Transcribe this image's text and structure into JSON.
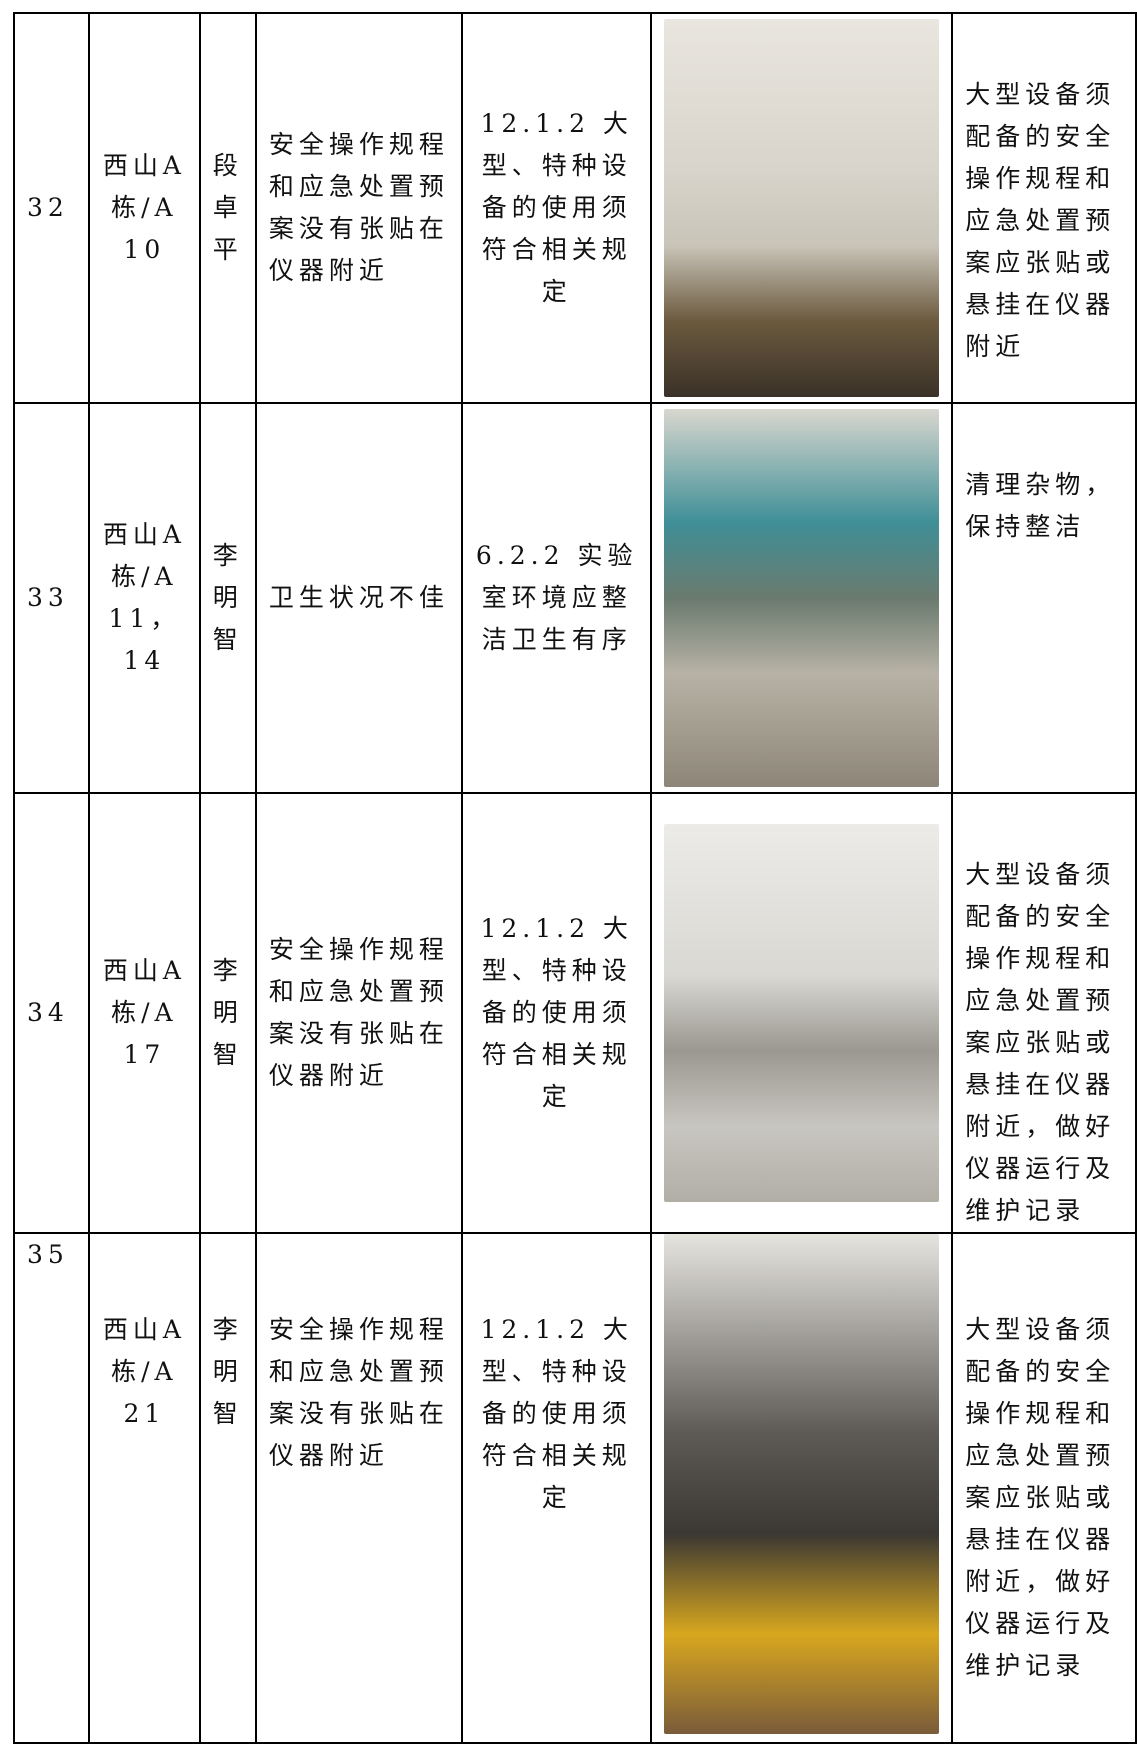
{
  "table": {
    "rows": [
      {
        "no": "32",
        "location": "西山A栋/A10",
        "person": "段卓平",
        "issue": "安全操作规程和应急处置预案没有张贴在仪器附近",
        "basis": "12.1.2 大型、特种设备的使用须符合相关规定",
        "suggestion": "大型设备须配备的安全操作规程和应急处置预案应张贴或悬挂在仪器附近"
      },
      {
        "no": "33",
        "location": "西山A栋/A11，14",
        "person": "李明智",
        "issue": "卫生状况不佳",
        "basis": "6.2.2 实验室环境应整洁卫生有序",
        "suggestion": "清理杂物，保持整洁"
      },
      {
        "no": "34",
        "location": "西山A栋/A17",
        "person": "李明智",
        "issue": "安全操作规程和应急处置预案没有张贴在仪器附近",
        "basis": "12.1.2 大型、特种设备的使用须符合相关规定",
        "suggestion": "大型设备须配备的安全操作规程和应急处置预案应张贴或悬挂在仪器附近，做好仪器运行及维护记录"
      },
      {
        "no": "35",
        "location": "西山A栋/A21",
        "person": "李明智",
        "issue": "安全操作规程和应急处置预案没有张贴在仪器附近",
        "basis": "12.1.2 大型、特种设备的使用须符合相关规定",
        "suggestion": "大型设备须配备的安全操作规程和应急处置预案应张贴或悬挂在仪器附近，做好仪器运行及维护记录"
      }
    ]
  }
}
